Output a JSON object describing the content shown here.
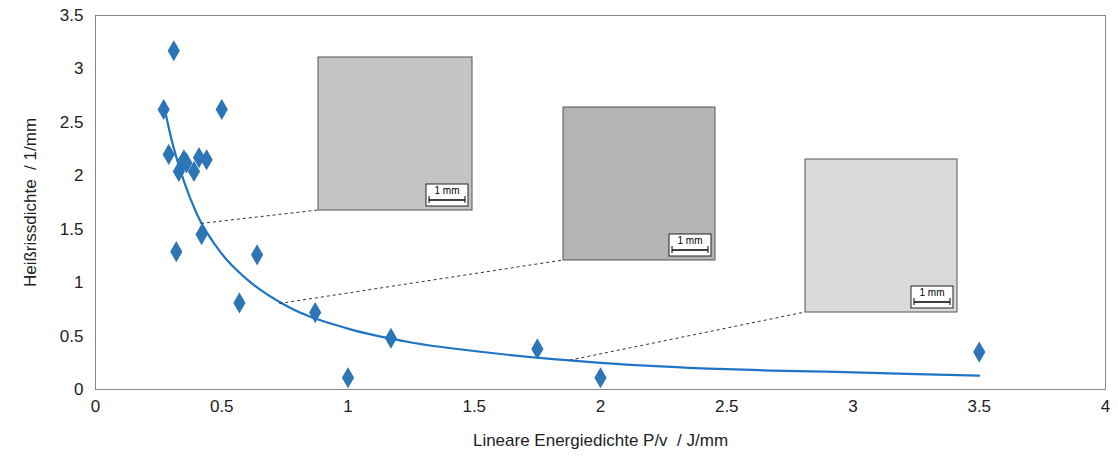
{
  "chart_data": {
    "type": "scatter",
    "x_label": "Lineare Energiedichte P/v  / J/mm",
    "y_label": "Heißrissdichte  / 1/mm",
    "xlim": [
      0,
      4
    ],
    "ylim": [
      0,
      3.5
    ],
    "xticks": [
      0,
      0.5,
      1,
      1.5,
      2,
      2.5,
      3,
      3.5,
      4
    ],
    "yticks": [
      0,
      0.5,
      1,
      1.5,
      2,
      2.5,
      3,
      3.5
    ],
    "grid": false,
    "series": [
      {
        "type": "scatter",
        "marker": "diamond",
        "color": "#2e75b6",
        "x": [
          0.27,
          0.29,
          0.31,
          0.32,
          0.33,
          0.35,
          0.36,
          0.39,
          0.41,
          0.42,
          0.44,
          0.5,
          0.57,
          0.64,
          0.87,
          1.0,
          1.17,
          1.75,
          2.0,
          3.5
        ],
        "values": [
          2.62,
          2.2,
          3.17,
          1.29,
          2.04,
          2.15,
          2.12,
          2.04,
          2.17,
          1.45,
          2.15,
          2.62,
          0.81,
          1.26,
          0.72,
          0.11,
          0.48,
          0.38,
          0.11,
          0.35
        ]
      },
      {
        "type": "line",
        "line_style": "solid",
        "color": "#1f74c4",
        "x": [
          0.27,
          0.3,
          0.35,
          0.4,
          0.5,
          0.6,
          0.75,
          1,
          1.25,
          1.5,
          2,
          2.5,
          3,
          3.5
        ],
        "values": [
          2.67,
          2.35,
          1.95,
          1.65,
          1.27,
          1.03,
          0.79,
          0.57,
          0.44,
          0.36,
          0.25,
          0.19,
          0.16,
          0.13
        ]
      }
    ],
    "annotations": [
      {
        "text": "1 mm",
        "x": 0.42,
        "y": 1.55
      },
      {
        "text": "1 mm",
        "x": 0.73,
        "y": 0.8
      },
      {
        "text": "1 mm",
        "x": 1.88,
        "y": 0.27
      }
    ]
  }
}
